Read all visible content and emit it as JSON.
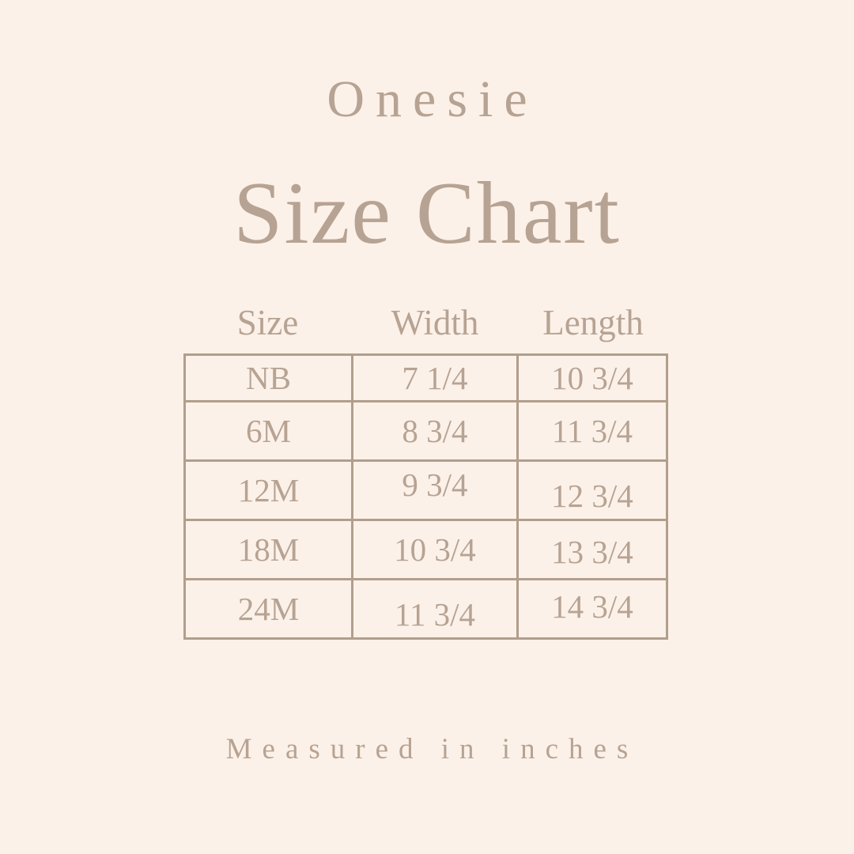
{
  "page": {
    "background_color": "#fcf1e8",
    "text_color": "#b7a393",
    "border_color": "#b19e8c"
  },
  "header": {
    "subtitle": "Onesie",
    "title": "Size Chart"
  },
  "table": {
    "columns": [
      "Size",
      "Width",
      "Length"
    ],
    "rows": [
      {
        "size": "NB",
        "width": "7 1/4",
        "length": "10 3/4"
      },
      {
        "size": "6M",
        "width": "8 3/4",
        "length": "11 3/4"
      },
      {
        "size": "12M",
        "width": "9 3/4",
        "length": "12 3/4"
      },
      {
        "size": "18M",
        "width": "10 3/4",
        "length": "13 3/4"
      },
      {
        "size": "24M",
        "width": "11 3/4",
        "length": "14 3/4"
      }
    ]
  },
  "footer": {
    "note": "Measured in inches"
  },
  "chart_data": {
    "type": "table",
    "title": "Onesie Size Chart",
    "columns": [
      "Size",
      "Width",
      "Length"
    ],
    "rows": [
      [
        "NB",
        "7 1/4",
        "10 3/4"
      ],
      [
        "6M",
        "8 3/4",
        "11 3/4"
      ],
      [
        "12M",
        "9 3/4",
        "12 3/4"
      ],
      [
        "18M",
        "10 3/4",
        "13 3/4"
      ],
      [
        "24M",
        "11 3/4",
        "14 3/4"
      ]
    ],
    "units": "inches",
    "layout": {
      "grid": true,
      "header_outside_borders": true
    }
  }
}
